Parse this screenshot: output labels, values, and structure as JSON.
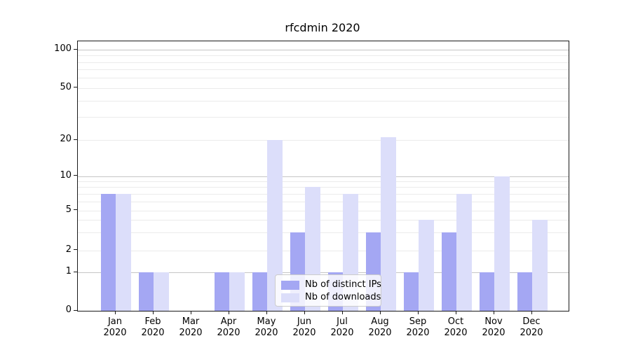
{
  "chart_data": {
    "type": "bar",
    "title": "rfcdmin 2020",
    "categories": [
      "Jan",
      "Feb",
      "Mar",
      "Apr",
      "May",
      "Jun",
      "Jul",
      "Aug",
      "Sep",
      "Oct",
      "Nov",
      "Dec"
    ],
    "year_line": "2020",
    "series": [
      {
        "name": "Nb of distinct IPs",
        "color": "#a4a7f3",
        "values": [
          7,
          1,
          0,
          1,
          1,
          3,
          1,
          3,
          1,
          3,
          1,
          1
        ]
      },
      {
        "name": "Nb of downloads",
        "color": "#dcdefa",
        "values": [
          7,
          1,
          0,
          1,
          20,
          8,
          7,
          21,
          4,
          7,
          10,
          4
        ]
      }
    ],
    "xlabel": "",
    "ylabel": "",
    "yticks": [
      0,
      1,
      2,
      5,
      10,
      20,
      50,
      100
    ],
    "ylim": [
      0,
      110
    ],
    "yscale": "symlog",
    "grid": "on",
    "legend": {
      "position": "lower-center-inside",
      "entries": [
        "Nb of distinct IPs",
        "Nb of downloads"
      ]
    },
    "colors": {
      "grid_major": "#c6c6c6",
      "grid_minor": "#ebebeb",
      "spine": "#1a1a1a",
      "text": "#000000",
      "legend_border": "#cccccc"
    }
  }
}
